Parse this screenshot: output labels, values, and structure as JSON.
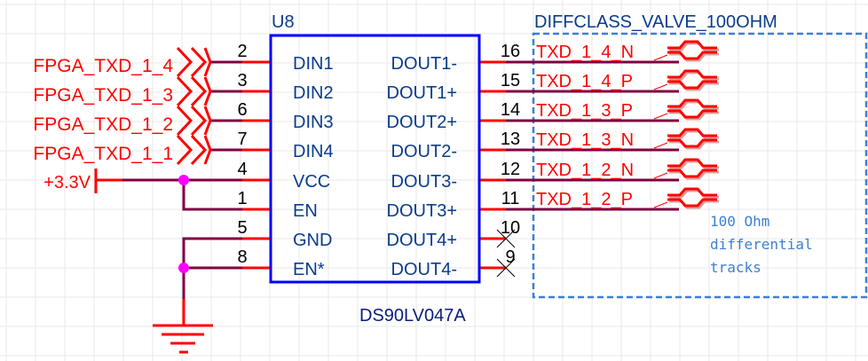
{
  "component": {
    "designator": "U8",
    "part_number": "DS90LV047A",
    "left_pins": [
      {
        "number": "2",
        "name": "DIN1"
      },
      {
        "number": "3",
        "name": "DIN2"
      },
      {
        "number": "6",
        "name": "DIN3"
      },
      {
        "number": "7",
        "name": "DIN4"
      },
      {
        "number": "4",
        "name": "VCC"
      },
      {
        "number": "1",
        "name": "EN"
      },
      {
        "number": "5",
        "name": "GND"
      },
      {
        "number": "8",
        "name": "EN*"
      }
    ],
    "right_pins": [
      {
        "number": "16",
        "name": "DOUT1-"
      },
      {
        "number": "15",
        "name": "DOUT1+"
      },
      {
        "number": "14",
        "name": "DOUT2+"
      },
      {
        "number": "13",
        "name": "DOUT2-"
      },
      {
        "number": "12",
        "name": "DOUT3-"
      },
      {
        "number": "11",
        "name": "DOUT3+"
      },
      {
        "number": "10",
        "name": "DOUT4+"
      },
      {
        "number": "9",
        "name": "DOUT4-"
      }
    ]
  },
  "input_ports": [
    "FPGA_TXD_1_4",
    "FPGA_TXD_1_3",
    "FPGA_TXD_1_2",
    "FPGA_TXD_1_1"
  ],
  "power_port": "+3.3V",
  "output_nets": [
    "TXD_1_4_N",
    "TXD_1_4_P",
    "TXD_1_3_P",
    "TXD_1_3_N",
    "TXD_1_2_N",
    "TXD_1_2_P"
  ],
  "no_connect_pins": [
    "10",
    "9"
  ],
  "diff_class": {
    "name": "DIFFCLASS_VALVE_100OHM",
    "note_lines": [
      "100 Ohm",
      "differential",
      "tracks"
    ]
  },
  "colors": {
    "pin": "#ff0000",
    "wire": "#800040",
    "body": "#0000ff",
    "pin_name": "#0a3c8c",
    "junction": "#ff00ff",
    "net_label": "#ff0000",
    "diff_class_box": "#3c7fd6"
  }
}
